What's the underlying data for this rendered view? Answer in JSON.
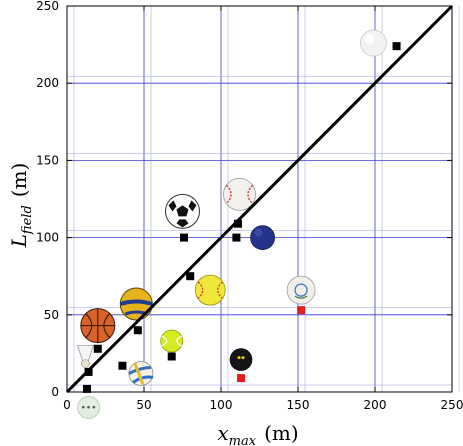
{
  "chart_data": {
    "type": "scatter",
    "xlabel": "x",
    "xlabel_sub": "max",
    "xlabel_unit": "(m)",
    "ylabel": "L",
    "ylabel_sub": "field",
    "ylabel_unit": "(m)",
    "xlim": [
      0,
      250
    ],
    "ylim": [
      0,
      250
    ],
    "xticks": [
      0,
      50,
      100,
      150,
      200,
      250
    ],
    "yticks": [
      0,
      50,
      100,
      150,
      200,
      250
    ],
    "grid": true,
    "reference_line": {
      "x": [
        0,
        250
      ],
      "y": [
        0,
        250
      ],
      "color": "#000000"
    },
    "marker_colors": {
      "black": "#000000",
      "red": "#e0201a"
    },
    "series": [
      {
        "marker": "square",
        "color": "#000000",
        "points": [
          {
            "x": 13,
            "y": 2
          },
          {
            "x": 14,
            "y": 13
          },
          {
            "x": 20,
            "y": 28
          },
          {
            "x": 36,
            "y": 17
          },
          {
            "x": 46,
            "y": 40
          },
          {
            "x": 68,
            "y": 23
          },
          {
            "x": 76,
            "y": 100
          },
          {
            "x": 80,
            "y": 75
          },
          {
            "x": 110,
            "y": 100
          },
          {
            "x": 111,
            "y": 109
          },
          {
            "x": 214,
            "y": 224
          }
        ]
      },
      {
        "marker": "square",
        "color": "#e0201a",
        "points": [
          {
            "x": 113,
            "y": 9
          },
          {
            "x": 152,
            "y": 53
          }
        ]
      }
    ],
    "ball_icons": [
      {
        "name": "shuttlecock-icon",
        "x": 12,
        "y": 23
      },
      {
        "name": "ping-pong-ball-icon",
        "x": 14,
        "y": -10
      },
      {
        "name": "basketball-icon",
        "x": 20,
        "y": 43
      },
      {
        "name": "volleyball-icon",
        "x": 48,
        "y": 12
      },
      {
        "name": "handball-icon",
        "x": 45,
        "y": 57
      },
      {
        "name": "tennis-ball-icon",
        "x": 68,
        "y": 33
      },
      {
        "name": "soccer-ball-icon",
        "x": 75,
        "y": 117
      },
      {
        "name": "softball-icon",
        "x": 93,
        "y": 66
      },
      {
        "name": "baseball-icon",
        "x": 112,
        "y": 128
      },
      {
        "name": "squash-ball-icon",
        "x": 113,
        "y": 21
      },
      {
        "name": "bowling-ball-icon",
        "x": 127,
        "y": 100
      },
      {
        "name": "cricket-ball-icon",
        "x": 152,
        "y": 66
      },
      {
        "name": "golf-ball-icon",
        "x": 199,
        "y": 226
      }
    ]
  }
}
